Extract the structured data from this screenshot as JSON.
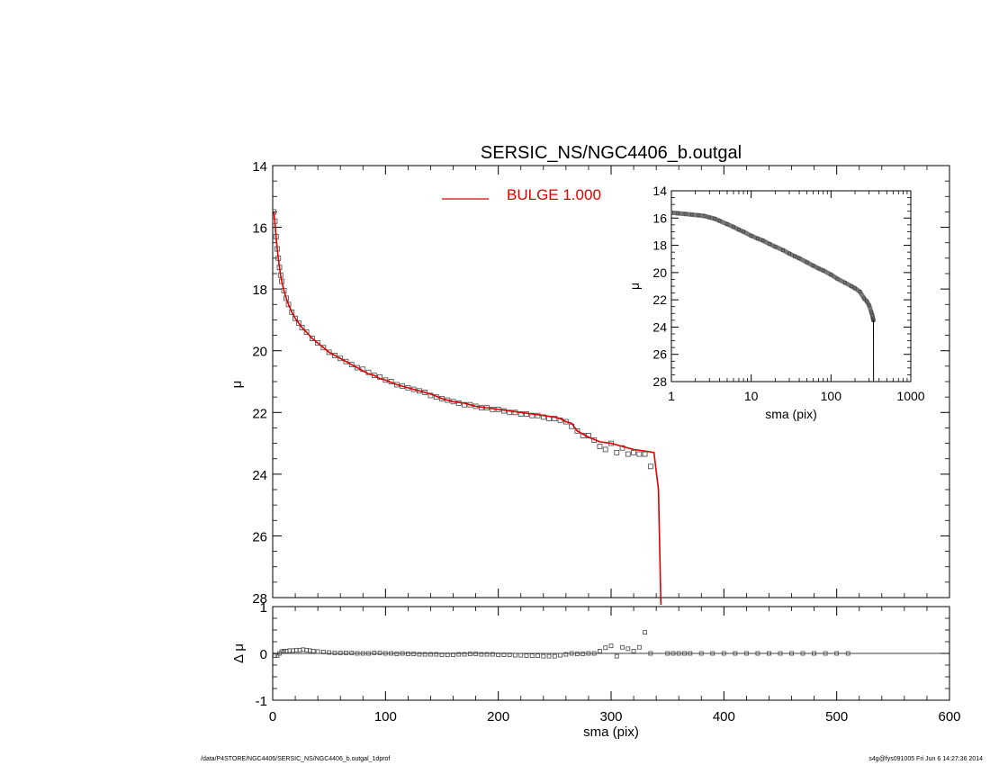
{
  "chart_data": [
    {
      "type": "scatter",
      "title": "SERSIC_NS/NGC4406_b.outgal",
      "xlabel": "",
      "ylabel": "μ",
      "xlim": [
        0,
        600
      ],
      "ylim": [
        28,
        14
      ],
      "yticks": [
        "14",
        "16",
        "18",
        "20",
        "22",
        "24",
        "26",
        "28"
      ],
      "legend": {
        "label": "BULGE  1.000",
        "color": "#dd0000",
        "placement": "top-center"
      },
      "series": [
        {
          "marker": "square",
          "color": "#555555",
          "x": [
            1,
            2,
            3,
            4,
            5,
            6,
            7,
            8,
            10,
            12,
            14,
            17,
            20,
            23,
            26,
            30,
            35,
            40,
            45,
            50,
            55,
            60,
            65,
            70,
            75,
            80,
            85,
            90,
            95,
            100,
            105,
            110,
            115,
            120,
            125,
            130,
            135,
            140,
            145,
            150,
            155,
            160,
            165,
            170,
            175,
            180,
            185,
            190,
            195,
            200,
            205,
            210,
            215,
            220,
            225,
            230,
            235,
            240,
            245,
            250,
            255,
            260,
            265,
            270,
            275,
            280,
            285,
            290,
            295,
            300,
            305,
            310,
            315,
            320,
            325,
            330,
            335
          ],
          "y": [
            15.5,
            15.8,
            16.3,
            16.7,
            17.0,
            17.3,
            17.55,
            17.75,
            18.05,
            18.3,
            18.5,
            18.75,
            18.95,
            19.1,
            19.25,
            19.4,
            19.6,
            19.75,
            19.9,
            20.05,
            20.15,
            20.25,
            20.35,
            20.45,
            20.55,
            20.6,
            20.7,
            20.8,
            20.85,
            20.95,
            21.0,
            21.1,
            21.15,
            21.2,
            21.25,
            21.3,
            21.35,
            21.45,
            21.5,
            21.55,
            21.6,
            21.65,
            21.7,
            21.75,
            21.75,
            21.8,
            21.85,
            21.85,
            21.9,
            21.9,
            21.95,
            22.0,
            22.0,
            22.05,
            22.05,
            22.1,
            22.1,
            22.15,
            22.2,
            22.2,
            22.25,
            22.3,
            22.45,
            22.6,
            22.75,
            22.75,
            22.9,
            23.1,
            23.2,
            23.0,
            23.3,
            23.15,
            23.35,
            23.3,
            23.35,
            23.35,
            23.75
          ]
        },
        {
          "name": "BULGE  1.000",
          "type": "line",
          "color": "#dd0000",
          "x": [
            1,
            2,
            3,
            4,
            5,
            6,
            7,
            8,
            10,
            12,
            14,
            17,
            20,
            23,
            26,
            30,
            35,
            40,
            45,
            50,
            55,
            60,
            65,
            70,
            75,
            80,
            85,
            90,
            95,
            100,
            110,
            120,
            130,
            140,
            150,
            160,
            170,
            180,
            190,
            200,
            210,
            220,
            230,
            240,
            250,
            255,
            260,
            265,
            270,
            280,
            290,
            300,
            310,
            320,
            330,
            338,
            342,
            344,
            344.5
          ],
          "y": [
            15.5,
            15.85,
            16.3,
            16.7,
            17.0,
            17.3,
            17.55,
            17.75,
            18.05,
            18.3,
            18.5,
            18.75,
            18.95,
            19.1,
            19.25,
            19.4,
            19.6,
            19.75,
            19.9,
            20.05,
            20.15,
            20.25,
            20.35,
            20.45,
            20.55,
            20.65,
            20.75,
            20.8,
            20.9,
            20.95,
            21.1,
            21.2,
            21.3,
            21.4,
            21.55,
            21.65,
            21.7,
            21.8,
            21.85,
            21.9,
            21.95,
            22.0,
            22.05,
            22.1,
            22.15,
            22.2,
            22.3,
            22.35,
            22.6,
            22.8,
            22.95,
            23.0,
            23.1,
            23.2,
            23.25,
            23.3,
            24.5,
            28.0,
            28.5
          ]
        }
      ]
    },
    {
      "type": "scatter",
      "title": "",
      "xlabel": "sma (pix)",
      "ylabel": "Δ μ",
      "xlim": [
        0,
        600
      ],
      "ylim": [
        -1,
        1
      ],
      "xticks": [
        "0",
        "100",
        "200",
        "300",
        "400",
        "500",
        "600"
      ],
      "yticks": [
        "1",
        "0",
        "-1"
      ],
      "reference_line": 0,
      "series": [
        {
          "marker": "square",
          "color": "#555555",
          "x": [
            2,
            4,
            6,
            8,
            10,
            12,
            15,
            18,
            21,
            24,
            27,
            30,
            33,
            36,
            40,
            45,
            50,
            55,
            60,
            65,
            70,
            75,
            80,
            85,
            90,
            95,
            100,
            105,
            110,
            115,
            120,
            125,
            130,
            135,
            140,
            145,
            150,
            155,
            160,
            165,
            170,
            175,
            180,
            185,
            190,
            195,
            200,
            205,
            210,
            215,
            220,
            225,
            230,
            235,
            240,
            245,
            250,
            255,
            260,
            265,
            270,
            275,
            280,
            285,
            290,
            295,
            300,
            305,
            310,
            315,
            320,
            325,
            330,
            335,
            350,
            355,
            360,
            365,
            370,
            380,
            390,
            400,
            410,
            420,
            430,
            440,
            450,
            460,
            470,
            480,
            490,
            500,
            510
          ],
          "y": [
            -0.05,
            -0.05,
            0.0,
            0.04,
            0.05,
            0.05,
            0.06,
            0.06,
            0.07,
            0.07,
            0.08,
            0.07,
            0.06,
            0.05,
            0.04,
            0.03,
            0.02,
            0.01,
            0.01,
            0.01,
            0.01,
            0.0,
            0.0,
            0.0,
            0.01,
            0.01,
            0.0,
            0.0,
            -0.01,
            0.0,
            -0.01,
            -0.01,
            -0.02,
            -0.02,
            -0.02,
            -0.02,
            -0.03,
            -0.03,
            -0.03,
            -0.02,
            -0.02,
            -0.01,
            -0.01,
            -0.02,
            -0.02,
            -0.02,
            -0.03,
            -0.03,
            -0.03,
            -0.04,
            -0.04,
            -0.05,
            -0.05,
            -0.05,
            -0.06,
            -0.06,
            -0.06,
            -0.04,
            -0.02,
            0.0,
            -0.01,
            -0.01,
            0.0,
            0.0,
            0.05,
            0.12,
            0.16,
            -0.06,
            0.13,
            0.1,
            0.05,
            0.13,
            0.45,
            0.0,
            0.0,
            0.0,
            0.0,
            0.0,
            0.0,
            0.0,
            0.0,
            0.0,
            0.0,
            0.0,
            0.0,
            0.0,
            0.0,
            0.0,
            0.0,
            0.0,
            0.0,
            0.0,
            0.0
          ]
        }
      ]
    },
    {
      "type": "scatter",
      "title": "",
      "xlabel": "sma (pix)",
      "ylabel": "μ",
      "xscale": "log",
      "xlim": [
        1,
        1000
      ],
      "ylim": [
        28,
        14
      ],
      "xticks": [
        "1",
        "10",
        "100",
        "1000"
      ],
      "yticks": [
        "14",
        "16",
        "18",
        "20",
        "22",
        "24",
        "26",
        "28"
      ],
      "series": [
        {
          "marker": "square",
          "color": "#555555",
          "x": [
            1,
            1.2,
            1.5,
            1.8,
            2.2,
            2.6,
            3,
            3.5,
            4,
            5,
            6,
            7,
            8,
            10,
            12,
            14,
            17,
            20,
            25,
            30,
            35,
            40,
            50,
            60,
            70,
            80,
            100,
            120,
            150,
            180,
            200,
            230,
            260,
            280,
            300,
            320,
            330,
            335,
            338,
            340
          ],
          "y": [
            15.6,
            15.65,
            15.7,
            15.75,
            15.8,
            15.85,
            15.95,
            16.05,
            16.2,
            16.45,
            16.65,
            16.85,
            17.0,
            17.3,
            17.5,
            17.65,
            17.9,
            18.1,
            18.35,
            18.6,
            18.8,
            18.95,
            19.25,
            19.5,
            19.7,
            19.85,
            20.15,
            20.45,
            20.75,
            21.0,
            21.15,
            21.4,
            21.9,
            22.1,
            22.4,
            22.9,
            23.15,
            23.35,
            23.45,
            23.5
          ]
        },
        {
          "type": "line",
          "color": "#000000",
          "x": [
            340,
            341,
            341.5
          ],
          "y": [
            23.5,
            25.0,
            28.2
          ]
        }
      ]
    }
  ],
  "footer": {
    "left": "/data/P4STORE/NGC4406/SERSIC_NS/NGC4406_b.outgal_1dprof",
    "right": "s4g@fys091005  Fri Jun  6 14:27:36 2014"
  }
}
